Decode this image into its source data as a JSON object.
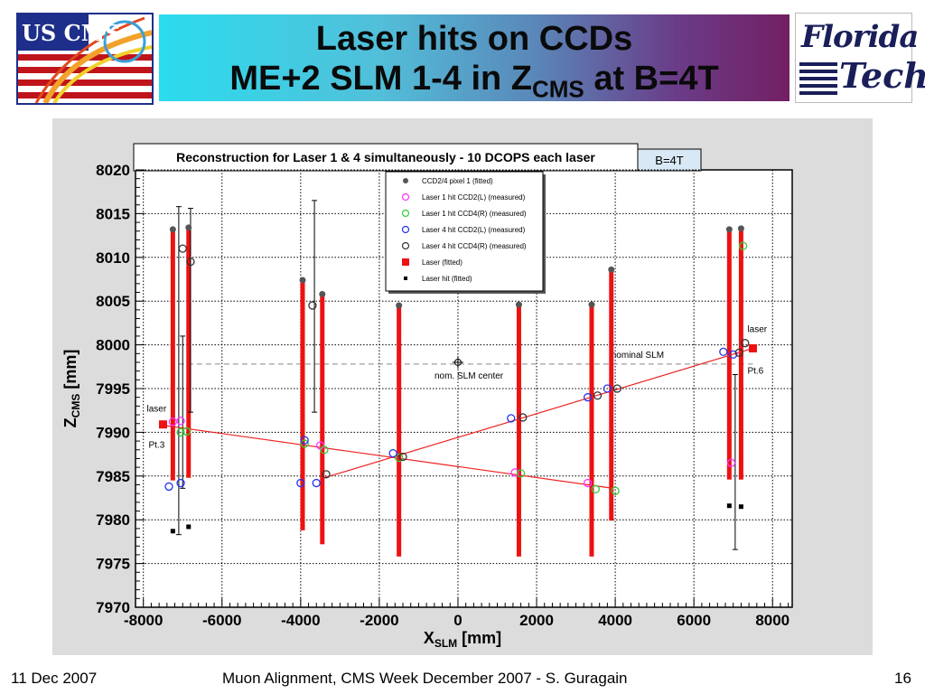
{
  "slide": {
    "title_line1": "Laser hits on CCDs",
    "title_line2_main": "ME+2 SLM 1-4 in Z",
    "title_line2_sub": "CMS",
    "title_line2_end": " at B=4T",
    "logo_left": "US CMS",
    "logo_right_line1": "Florida",
    "logo_right_line2": "Tech",
    "footer_date": "11 Dec 2007",
    "footer_center": "Muon Alignment, CMS Week December 2007  - S. Guragain",
    "footer_page": "16"
  },
  "chart_data": {
    "type": "scatter",
    "title": "Reconstruction for Laser 1 & 4 simultaneously - 10 DCOPS each laser",
    "badge": "B=4T",
    "xlabel_main": "X",
    "xlabel_sub": "SLM",
    "xlabel_unit": " [mm]",
    "ylabel_main": "Z",
    "ylabel_sub": "CMS",
    "ylabel_unit": " [mm]",
    "xlim": [
      -8200,
      8500
    ],
    "ylim": [
      7970,
      8020
    ],
    "xticks": [
      -8000,
      -6000,
      -4000,
      -2000,
      0,
      2000,
      4000,
      6000,
      8000
    ],
    "yticks": [
      7970,
      7975,
      7980,
      7985,
      7990,
      7995,
      8000,
      8005,
      8010,
      8015,
      8020
    ],
    "grid": true,
    "legend_position": "top-center",
    "legend": [
      {
        "label": "CCD2/4 pixel 1 (fitted)",
        "marker": "dot",
        "color": "#555555"
      },
      {
        "label": "Laser 1 hit CCD2(L) (measured)",
        "marker": "circle",
        "color": "#ff33ff"
      },
      {
        "label": "Laser 1 hit CCD4(R) (measured)",
        "marker": "circle",
        "color": "#33cc33"
      },
      {
        "label": "Laser 4 hit CCD2(L) (measured)",
        "marker": "circle",
        "color": "#2233ee"
      },
      {
        "label": "Laser 4 hit CCD4(R) (measured)",
        "marker": "circle",
        "color": "#333333"
      },
      {
        "label": "Laser (fitted)",
        "marker": "square",
        "color": "#ee1111"
      },
      {
        "label": "Laser hit (fitted)",
        "marker": "smallsquare",
        "color": "#000000"
      }
    ],
    "ccd_columns": [
      {
        "x": -7250,
        "z_bottom": 7984.5,
        "z_top": 8013.2
      },
      {
        "x": -6850,
        "z_bottom": 7984.8,
        "z_top": 8013.4
      },
      {
        "x": -3950,
        "z_bottom": 7978.8,
        "z_top": 8007.4
      },
      {
        "x": -3450,
        "z_bottom": 7977.2,
        "z_top": 8005.8
      },
      {
        "x": -1500,
        "z_bottom": 7975.8,
        "z_top": 8004.5
      },
      {
        "x": 1550,
        "z_bottom": 7975.8,
        "z_top": 8004.6
      },
      {
        "x": 3400,
        "z_bottom": 7975.8,
        "z_top": 8004.6
      },
      {
        "x": 3900,
        "z_bottom": 7979.9,
        "z_top": 8008.6
      },
      {
        "x": 6900,
        "z_bottom": 7984.6,
        "z_top": 8013.2
      },
      {
        "x": 7200,
        "z_bottom": 7984.6,
        "z_top": 8013.3
      }
    ],
    "error_bars": [
      {
        "x": -7100,
        "z_low": 7978.3,
        "z_high": 8015.8
      },
      {
        "x": -6800,
        "z_low": 7992.3,
        "z_high": 8015.6
      },
      {
        "x": -3650,
        "z_low": 7992.3,
        "z_high": 8016.5
      },
      {
        "x": -7000,
        "z_low": 7983.6,
        "z_high": 8001.0
      },
      {
        "x": 7050,
        "z_low": 7976.6,
        "z_high": 7996.6
      }
    ],
    "laser1_line": {
      "x": [
        -7500,
        3950
      ],
      "z": [
        7990.8,
        7983.6
      ]
    },
    "laser4_line": {
      "x": [
        -3400,
        7500
      ],
      "z": [
        7984.8,
        7999.6
      ]
    },
    "nominal_slm": {
      "z": 7997.8,
      "x": [
        -7100,
        7500
      ],
      "label": "nominal SLM"
    },
    "slm_center": {
      "x": 0,
      "z": 7998.0,
      "label": "nom. SLM center"
    },
    "laser_points": [
      {
        "x": -7500,
        "z": 7990.9,
        "label": "laser",
        "tag": "Pt.3"
      },
      {
        "x": 7500,
        "z": 7999.6,
        "label": "laser",
        "tag": "Pt.6"
      }
    ],
    "series": [
      {
        "name": "CCD2/4 pixel 1 (fitted)",
        "x": [
          -7250,
          -6850,
          -3950,
          -3450,
          -1500,
          1550,
          3400,
          3900,
          6900,
          7200
        ],
        "z": [
          8013.2,
          8013.4,
          8007.4,
          8005.8,
          8004.5,
          8004.6,
          8004.6,
          8008.6,
          8013.2,
          8013.3
        ]
      },
      {
        "name": "Laser 1 hit CCD2(L) (measured)",
        "x": [
          -7250,
          -7050,
          -3500,
          1450,
          3300,
          6950
        ],
        "z": [
          7991.2,
          7991.3,
          7988.5,
          7985.4,
          7984.2,
          7986.5
        ]
      },
      {
        "name": "Laser 1 hit CCD4(R) (measured)",
        "x": [
          -7050,
          -6900,
          -3900,
          -3400,
          -1500,
          1600,
          3500,
          4000,
          7250
        ],
        "z": [
          7990.0,
          7990.1,
          7988.7,
          7988.0,
          7987.1,
          7985.3,
          7983.5,
          7983.3,
          8011.3
        ]
      },
      {
        "name": "Laser 4 hit CCD2(L) (measured)",
        "x": [
          -7350,
          -7050,
          -4000,
          -3900,
          -3600,
          -1650,
          1350,
          3300,
          3800,
          6750,
          7000
        ],
        "z": [
          7983.8,
          7984.2,
          7984.2,
          7989.1,
          7984.2,
          7987.6,
          7991.6,
          7994.0,
          7995.0,
          7999.2,
          7998.9
        ]
      },
      {
        "name": "Laser 4 hit CCD4(R) (measured)",
        "x": [
          -7000,
          -6800,
          -3700,
          -3350,
          -1400,
          1650,
          3550,
          4050,
          7150,
          7300
        ],
        "z": [
          8011.0,
          8009.5,
          8004.5,
          7985.2,
          7987.2,
          7991.7,
          7994.2,
          7995.0,
          7999.1,
          8000.2
        ]
      },
      {
        "name": "Laser hit (fitted)",
        "x": [
          -7250,
          -6850,
          6900,
          7200
        ],
        "z": [
          7978.7,
          7979.2,
          7981.6,
          7981.5
        ]
      }
    ]
  }
}
